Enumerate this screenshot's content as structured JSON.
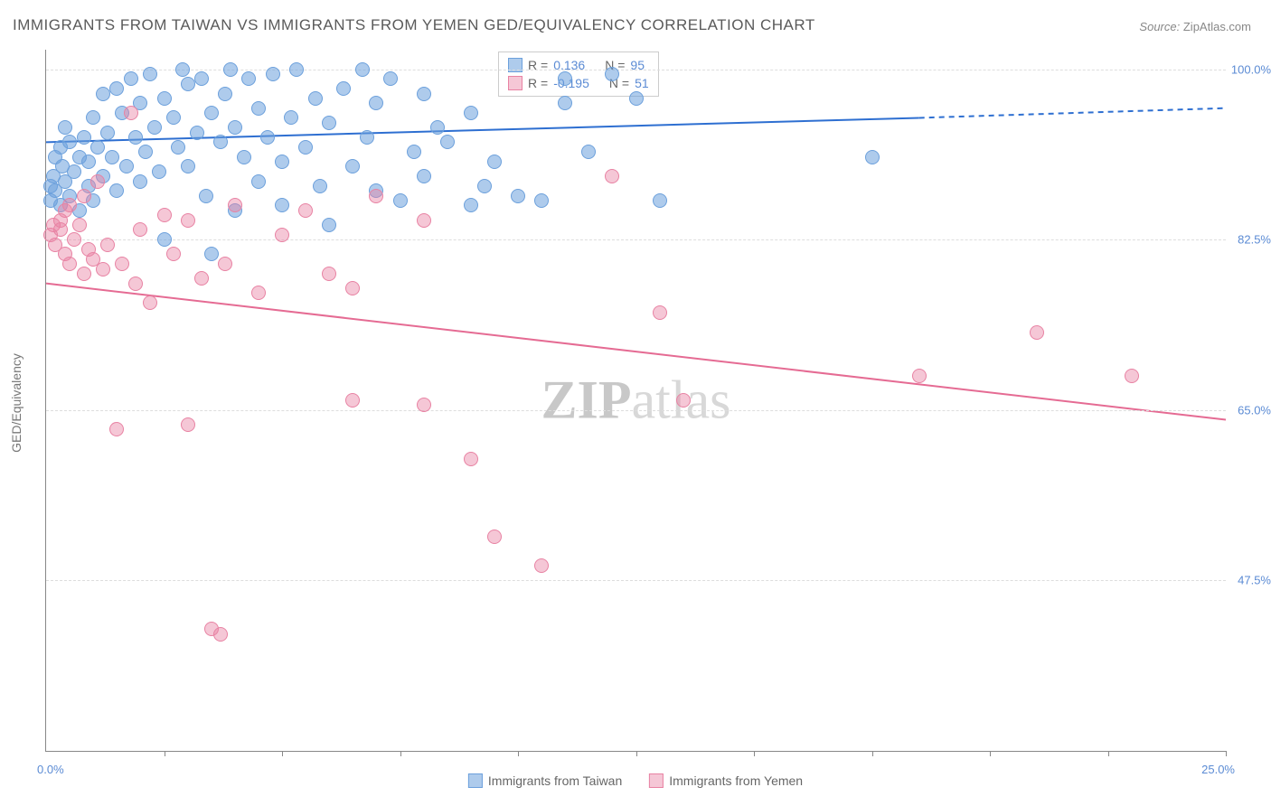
{
  "title": "IMMIGRANTS FROM TAIWAN VS IMMIGRANTS FROM YEMEN GED/EQUIVALENCY CORRELATION CHART",
  "source_label": "Source:",
  "source_value": "ZipAtlas.com",
  "ylabel": "GED/Equivalency",
  "watermark_a": "ZIP",
  "watermark_b": "atlas",
  "chart": {
    "type": "scatter",
    "x_min_label": "0.0%",
    "x_max_label": "25.0%",
    "x_min": 0.0,
    "x_max": 25.0,
    "y_min": 30.0,
    "y_max": 102.0,
    "y_ticks": [
      {
        "value": 47.5,
        "label": "47.5%"
      },
      {
        "value": 65.0,
        "label": "65.0%"
      },
      {
        "value": 82.5,
        "label": "82.5%"
      },
      {
        "value": 100.0,
        "label": "100.0%"
      }
    ],
    "x_tick_marks": [
      2.5,
      5.0,
      7.5,
      10.0,
      12.5,
      15.0,
      17.5,
      20.0,
      22.5,
      25.0
    ],
    "grid_color": "#dddddd",
    "background_color": "#ffffff",
    "series": [
      {
        "name": "Immigrants from Taiwan",
        "color_fill": "rgba(108,160,220,0.55)",
        "color_stroke": "#6ca0dc",
        "marker_radius": 8,
        "R_label": "R =",
        "R": "0.136",
        "N_label": "N =",
        "N": "95",
        "trend": {
          "x0": 0.0,
          "y0": 92.5,
          "x1_solid": 18.5,
          "y1_solid": 95.0,
          "x1_dash": 25.0,
          "y1_dash": 96.0,
          "color": "#2e6fd1",
          "width": 2
        },
        "points": [
          [
            0.1,
            86.5
          ],
          [
            0.1,
            88.0
          ],
          [
            0.15,
            89.0
          ],
          [
            0.2,
            87.5
          ],
          [
            0.2,
            91.0
          ],
          [
            0.3,
            86.0
          ],
          [
            0.3,
            92.0
          ],
          [
            0.35,
            90.0
          ],
          [
            0.4,
            88.5
          ],
          [
            0.4,
            94.0
          ],
          [
            0.5,
            92.5
          ],
          [
            0.5,
            87.0
          ],
          [
            0.6,
            89.5
          ],
          [
            0.7,
            91.0
          ],
          [
            0.7,
            85.5
          ],
          [
            0.8,
            93.0
          ],
          [
            0.9,
            90.5
          ],
          [
            0.9,
            88.0
          ],
          [
            1.0,
            95.0
          ],
          [
            1.0,
            86.5
          ],
          [
            1.1,
            92.0
          ],
          [
            1.2,
            97.5
          ],
          [
            1.2,
            89.0
          ],
          [
            1.3,
            93.5
          ],
          [
            1.4,
            91.0
          ],
          [
            1.5,
            98.0
          ],
          [
            1.5,
            87.5
          ],
          [
            1.6,
            95.5
          ],
          [
            1.7,
            90.0
          ],
          [
            1.8,
            99.0
          ],
          [
            1.9,
            93.0
          ],
          [
            2.0,
            96.5
          ],
          [
            2.0,
            88.5
          ],
          [
            2.1,
            91.5
          ],
          [
            2.2,
            99.5
          ],
          [
            2.3,
            94.0
          ],
          [
            2.4,
            89.5
          ],
          [
            2.5,
            97.0
          ],
          [
            2.5,
            82.5
          ],
          [
            2.7,
            95.0
          ],
          [
            2.8,
            92.0
          ],
          [
            2.9,
            100.0
          ],
          [
            3.0,
            98.5
          ],
          [
            3.0,
            90.0
          ],
          [
            3.2,
            93.5
          ],
          [
            3.3,
            99.0
          ],
          [
            3.4,
            87.0
          ],
          [
            3.5,
            95.5
          ],
          [
            3.5,
            81.0
          ],
          [
            3.7,
            92.5
          ],
          [
            3.8,
            97.5
          ],
          [
            3.9,
            100.0
          ],
          [
            4.0,
            94.0
          ],
          [
            4.0,
            85.5
          ],
          [
            4.2,
            91.0
          ],
          [
            4.3,
            99.0
          ],
          [
            4.5,
            96.0
          ],
          [
            4.5,
            88.5
          ],
          [
            4.7,
            93.0
          ],
          [
            4.8,
            99.5
          ],
          [
            5.0,
            90.5
          ],
          [
            5.0,
            86.0
          ],
          [
            5.2,
            95.0
          ],
          [
            5.3,
            100.0
          ],
          [
            5.5,
            92.0
          ],
          [
            5.7,
            97.0
          ],
          [
            5.8,
            88.0
          ],
          [
            6.0,
            94.5
          ],
          [
            6.0,
            84.0
          ],
          [
            6.3,
            98.0
          ],
          [
            6.5,
            90.0
          ],
          [
            6.7,
            100.0
          ],
          [
            6.8,
            93.0
          ],
          [
            7.0,
            87.5
          ],
          [
            7.0,
            96.5
          ],
          [
            7.3,
            99.0
          ],
          [
            7.5,
            86.5
          ],
          [
            7.8,
            91.5
          ],
          [
            8.0,
            97.5
          ],
          [
            8.0,
            89.0
          ],
          [
            8.3,
            94.0
          ],
          [
            8.5,
            92.5
          ],
          [
            9.0,
            95.5
          ],
          [
            9.0,
            86.0
          ],
          [
            9.3,
            88.0
          ],
          [
            9.5,
            90.5
          ],
          [
            10.0,
            87.0
          ],
          [
            10.5,
            86.5
          ],
          [
            11.0,
            99.0
          ],
          [
            11.0,
            96.5
          ],
          [
            11.5,
            91.5
          ],
          [
            12.0,
            99.5
          ],
          [
            12.5,
            97.0
          ],
          [
            13.0,
            86.5
          ],
          [
            17.5,
            91.0
          ]
        ]
      },
      {
        "name": "Immigrants from Yemen",
        "color_fill": "rgba(232,130,163,0.45)",
        "color_stroke": "#e882a3",
        "marker_radius": 8,
        "R_label": "R =",
        "R": "-0.195",
        "N_label": "N =",
        "N": "51",
        "trend": {
          "x0": 0.0,
          "y0": 78.0,
          "x1_solid": 25.0,
          "y1_solid": 64.0,
          "x1_dash": 25.0,
          "y1_dash": 64.0,
          "color": "#e56b93",
          "width": 2
        },
        "points": [
          [
            0.1,
            83.0
          ],
          [
            0.15,
            84.0
          ],
          [
            0.2,
            82.0
          ],
          [
            0.3,
            83.5
          ],
          [
            0.3,
            84.5
          ],
          [
            0.4,
            81.0
          ],
          [
            0.4,
            85.5
          ],
          [
            0.5,
            80.0
          ],
          [
            0.5,
            86.0
          ],
          [
            0.6,
            82.5
          ],
          [
            0.7,
            84.0
          ],
          [
            0.8,
            79.0
          ],
          [
            0.8,
            87.0
          ],
          [
            0.9,
            81.5
          ],
          [
            1.0,
            80.5
          ],
          [
            1.1,
            88.5
          ],
          [
            1.2,
            79.5
          ],
          [
            1.3,
            82.0
          ],
          [
            1.5,
            63.0
          ],
          [
            1.6,
            80.0
          ],
          [
            1.8,
            95.5
          ],
          [
            1.9,
            78.0
          ],
          [
            2.0,
            83.5
          ],
          [
            2.2,
            76.0
          ],
          [
            2.5,
            85.0
          ],
          [
            2.7,
            81.0
          ],
          [
            3.0,
            84.5
          ],
          [
            3.0,
            63.5
          ],
          [
            3.3,
            78.5
          ],
          [
            3.5,
            42.5
          ],
          [
            3.7,
            42.0
          ],
          [
            3.8,
            80.0
          ],
          [
            4.0,
            86.0
          ],
          [
            4.5,
            77.0
          ],
          [
            5.0,
            83.0
          ],
          [
            5.5,
            85.5
          ],
          [
            6.0,
            79.0
          ],
          [
            6.5,
            66.0
          ],
          [
            6.5,
            77.5
          ],
          [
            7.0,
            87.0
          ],
          [
            8.0,
            65.5
          ],
          [
            8.0,
            84.5
          ],
          [
            9.0,
            60.0
          ],
          [
            9.5,
            52.0
          ],
          [
            10.5,
            49.0
          ],
          [
            12.0,
            89.0
          ],
          [
            13.0,
            75.0
          ],
          [
            13.5,
            66.0
          ],
          [
            18.5,
            68.5
          ],
          [
            21.0,
            73.0
          ],
          [
            23.0,
            68.5
          ]
        ]
      }
    ]
  }
}
